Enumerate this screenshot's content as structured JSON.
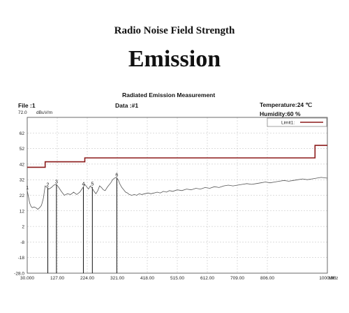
{
  "header": {
    "subtitle": "Radio Noise Field Strength",
    "title": "Emission"
  },
  "meta": {
    "measurement_title": "Radiated Emission Measurement",
    "file": "File :1",
    "data": "Data :#1",
    "temperature": "Temperature:24 ℃",
    "humidity": "Humidity:60 %"
  },
  "chart_data": {
    "type": "line",
    "title": "Radiated Emission Measurement",
    "ylabel": "dBuV/m",
    "xlabel": "MHz",
    "ylim": [
      -28,
      72
    ],
    "xlim": [
      30,
      1000
    ],
    "y_ticks": [
      "72.0",
      "62",
      "52",
      "42",
      "32",
      "22",
      "12",
      "2",
      "-8",
      "-18",
      "-28.0"
    ],
    "x_ticks": [
      "30.000",
      "127.00",
      "224.00",
      "321.00",
      "418.00",
      "515.00",
      "612.00",
      "709.00",
      "806.00",
      "1000.00"
    ],
    "x_tick_values": [
      30,
      127,
      224,
      321,
      418,
      515,
      612,
      709,
      806,
      1000
    ],
    "grid": true,
    "legend": {
      "label": "Limit1:",
      "color": "#8b1a1a",
      "placement": "top-right"
    },
    "limit_line": {
      "name": "Limit1:",
      "x": [
        30,
        88,
        88,
        216,
        216,
        960,
        960,
        1000
      ],
      "y": [
        40,
        40,
        43.5,
        43.5,
        46,
        46,
        54,
        54
      ]
    },
    "emission_trace": {
      "x": [
        30,
        34,
        38,
        42,
        46,
        52,
        58,
        64,
        70,
        76,
        82,
        88,
        94,
        100,
        108,
        116,
        124,
        132,
        140,
        150,
        160,
        170,
        180,
        190,
        200,
        210,
        216,
        222,
        228,
        234,
        240,
        246,
        252,
        258,
        264,
        270,
        276,
        282,
        288,
        294,
        300,
        306,
        312,
        318,
        324,
        330,
        336,
        342,
        348,
        354,
        360,
        368,
        376,
        384,
        392,
        400,
        410,
        420,
        430,
        440,
        450,
        460,
        470,
        480,
        490,
        500,
        515,
        530,
        545,
        560,
        575,
        590,
        605,
        620,
        635,
        650,
        665,
        680,
        695,
        710,
        725,
        740,
        755,
        770,
        785,
        800,
        815,
        830,
        845,
        860,
        875,
        890,
        905,
        920,
        935,
        950,
        965,
        980,
        1000
      ],
      "y": [
        25,
        21,
        17,
        15,
        14,
        14.5,
        14,
        13,
        14,
        15.5,
        20,
        28,
        27,
        26,
        27,
        28.5,
        29,
        27,
        24.5,
        22,
        23,
        22.5,
        24,
        22.5,
        24,
        27,
        29,
        27.5,
        26,
        28,
        26.5,
        24.5,
        23,
        25,
        28,
        27,
        25.5,
        25,
        27,
        28.5,
        30,
        32,
        33,
        33.5,
        32,
        29,
        27,
        25.5,
        24,
        23.5,
        22.5,
        22,
        22.5,
        22,
        23,
        22.5,
        23,
        23.5,
        23,
        23.5,
        24,
        23.5,
        24.5,
        24,
        25,
        24.5,
        25.5,
        25,
        26,
        25.5,
        26.5,
        26,
        27,
        26.5,
        27.5,
        27,
        28,
        28.5,
        28,
        28.5,
        29,
        29.5,
        29,
        29.5,
        30,
        30.5,
        30,
        30.5,
        31,
        31.5,
        31,
        31.5,
        32,
        32.5,
        32,
        32.5,
        33,
        33.5,
        33
      ]
    },
    "markers": [
      {
        "label": "1",
        "x": 30.5,
        "y": 25
      },
      {
        "label": "2",
        "x": 96.5,
        "y": 27
      },
      {
        "label": "3",
        "x": 124.5,
        "y": 28.7
      },
      {
        "label": "4",
        "x": 211.5,
        "y": 27.3
      },
      {
        "label": "5",
        "x": 240.5,
        "y": 27.3
      },
      {
        "label": "6",
        "x": 319.5,
        "y": 33.2
      }
    ]
  }
}
